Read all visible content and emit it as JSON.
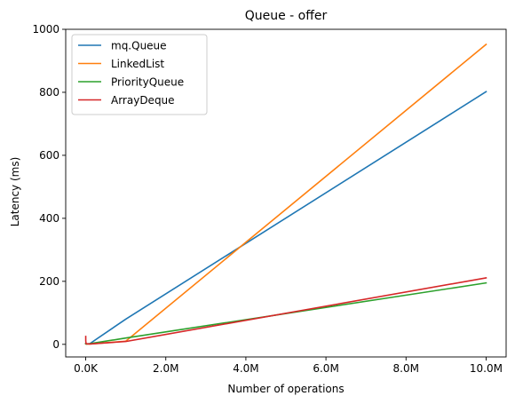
{
  "chart_data": {
    "type": "line",
    "title": "Queue - offer",
    "xlabel": "Number of operations",
    "ylabel": "Latency (ms)",
    "xlim": [
      -500000,
      10500000
    ],
    "ylim": [
      -40,
      1000
    ],
    "x_ticks": [
      {
        "value": 0,
        "label": "0.0K"
      },
      {
        "value": 2000000,
        "label": "2.0M"
      },
      {
        "value": 4000000,
        "label": "4.0M"
      },
      {
        "value": 6000000,
        "label": "6.0M"
      },
      {
        "value": 8000000,
        "label": "8.0M"
      },
      {
        "value": 10000000,
        "label": "10.0M"
      }
    ],
    "y_ticks": [
      {
        "value": 0,
        "label": "0"
      },
      {
        "value": 200,
        "label": "200"
      },
      {
        "value": 400,
        "label": "400"
      },
      {
        "value": 600,
        "label": "600"
      },
      {
        "value": 800,
        "label": "800"
      },
      {
        "value": 1000,
        "label": "1000"
      }
    ],
    "grid": false,
    "legend_position": "top-left",
    "series": [
      {
        "name": "mq.Queue",
        "color": "#1f77b4",
        "x": [
          0,
          1000,
          10000,
          100000,
          1000000,
          10000000
        ],
        "y": [
          3,
          2,
          1,
          2,
          80,
          802
        ]
      },
      {
        "name": "LinkedList",
        "color": "#ff7f0e",
        "x": [
          0,
          1000,
          10000,
          100000,
          1000000,
          10000000
        ],
        "y": [
          2,
          1,
          1,
          1,
          10,
          952
        ]
      },
      {
        "name": "PriorityQueue",
        "color": "#2ca02c",
        "x": [
          0,
          1000,
          10000,
          100000,
          1000000,
          10000000
        ],
        "y": [
          2,
          2,
          1,
          2,
          20,
          195
        ]
      },
      {
        "name": "ArrayDeque",
        "color": "#d62728",
        "x": [
          0,
          1000,
          10000,
          100000,
          1000000,
          10000000
        ],
        "y": [
          25,
          10,
          2,
          1,
          9,
          211
        ]
      }
    ]
  }
}
